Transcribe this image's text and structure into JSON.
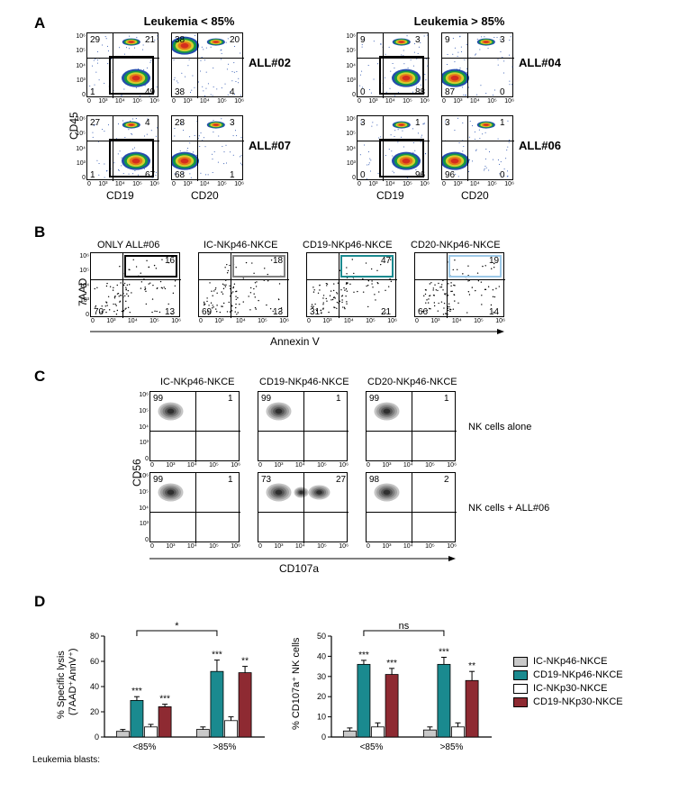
{
  "labels": {
    "A": "A",
    "B": "B",
    "C": "C",
    "D": "D",
    "leuk_lt": "Leukemia < 85%",
    "leuk_gt": "Leukemia > 85%",
    "ALL02": "ALL#02",
    "ALL07": "ALL#07",
    "ALL04": "ALL#04",
    "ALL06": "ALL#06",
    "CD45": "CD45",
    "CD19": "CD19",
    "CD20": "CD20",
    "CD56": "CD56",
    "CD107a": "CD107a",
    "7AAD": "7AAD",
    "AnnV": "Annexin V",
    "only06": "ONLY ALL#06",
    "IC46": "IC-NKp46-NKCE",
    "CD19_46": "CD19-NKp46-NKCE",
    "CD20_46": "CD20-NKp46-NKCE",
    "IC30": "IC-NKp30-NKCE",
    "CD19_30": "CD19-NKp30-NKCE",
    "nk_alone": "NK cells alone",
    "nk_all06": "NK cells + ALL#06",
    "lysis_y": "% Specific lysis\n(7AAD⁺AnnV⁺)",
    "lysis_y1": "% Specific lysis",
    "lysis_y2": "(7AAD⁺AnnV⁺)",
    "cd107_y": "% CD107a⁺ NK cells",
    "blasts": "Leukemia blasts:",
    "lt85": "<85%",
    "gt85": ">85%",
    "star1": "*",
    "star2": "**",
    "star3": "***",
    "ns": "ns"
  },
  "colors": {
    "bg": "#ffffff",
    "text": "#000000",
    "ic46": "#c9c9c9",
    "cd19_46": "#1a8a8f",
    "ic30": "#ffffff",
    "cd19_30": "#8e2a32",
    "cd20_gate": "#9dc9e8",
    "density1": "#0b3aa3",
    "density2": "#14a03a",
    "density3": "#e8d52a",
    "density4": "#e86c1a",
    "density5": "#d1261f",
    "gray_dots": "#7a7a7a"
  },
  "panelA": {
    "plots": [
      {
        "id": "A1",
        "sample": "ALL#02",
        "x": "CD19",
        "y": "CD45",
        "q": [
          29,
          21,
          1,
          49
        ],
        "gate": true,
        "gateColor": "#000",
        "gatePos": "right",
        "colored": true
      },
      {
        "id": "A2",
        "sample": "ALL#02",
        "x": "CD20",
        "y": "CD45",
        "q": [
          38,
          20,
          38,
          4
        ],
        "gate": false,
        "colored": true
      },
      {
        "id": "A3",
        "sample": "ALL#04",
        "x": "CD19",
        "y": "CD45",
        "q": [
          9,
          3,
          0,
          88
        ],
        "gate": true,
        "gateColor": "#000",
        "gatePos": "right",
        "colored": true
      },
      {
        "id": "A4",
        "sample": "ALL#04",
        "x": "CD20",
        "y": "CD45",
        "q": [
          9,
          3,
          87,
          0
        ],
        "gate": false,
        "colored": true
      },
      {
        "id": "A5",
        "sample": "ALL#07",
        "x": "CD19",
        "y": "CD45",
        "q": [
          27,
          4,
          1,
          67
        ],
        "gate": true,
        "gateColor": "#000",
        "gatePos": "right",
        "colored": true
      },
      {
        "id": "A6",
        "sample": "ALL#07",
        "x": "CD20",
        "y": "CD45",
        "q": [
          28,
          3,
          68,
          1
        ],
        "gate": false,
        "colored": true
      },
      {
        "id": "A7",
        "sample": "ALL#06",
        "x": "CD19",
        "y": "CD45",
        "q": [
          3,
          1,
          0,
          96
        ],
        "gate": true,
        "gateColor": "#000",
        "gatePos": "right",
        "colored": true
      },
      {
        "id": "A8",
        "sample": "ALL#06",
        "x": "CD20",
        "y": "CD45",
        "q": [
          3,
          1,
          96,
          0
        ],
        "gate": false,
        "colored": true
      }
    ]
  },
  "panelB": {
    "plots": [
      {
        "title": "ONLY ALL#06",
        "q": [
          null,
          16,
          70,
          13
        ],
        "gateColor": "#000000"
      },
      {
        "title": "IC-NKp46-NKCE",
        "q": [
          null,
          18,
          69,
          13
        ],
        "gateColor": "#808080"
      },
      {
        "title": "CD19-NKp46-NKCE",
        "q": [
          null,
          47,
          31,
          21
        ],
        "gateColor": "#1a8a8f"
      },
      {
        "title": "CD20-NKp46-NKCE",
        "q": [
          null,
          19,
          66,
          14
        ],
        "gateColor": "#9dc9e8"
      }
    ]
  },
  "panelC": {
    "plots_top": [
      {
        "title": "IC-NKp46-NKCE",
        "q": [
          99,
          1,
          0,
          0
        ]
      },
      {
        "title": "CD19-NKp46-NKCE",
        "q": [
          99,
          1,
          0,
          0
        ]
      },
      {
        "title": "CD20-NKp46-NKCE",
        "q": [
          99,
          1,
          0,
          0
        ]
      }
    ],
    "plots_bottom": [
      {
        "q": [
          99,
          1,
          0,
          0
        ]
      },
      {
        "q": [
          73,
          27,
          0,
          0
        ]
      },
      {
        "q": [
          98,
          2,
          0,
          0
        ]
      }
    ]
  },
  "panelD": {
    "lysis": {
      "ymax": 80,
      "ytick": 20,
      "groups": [
        "<85%",
        ">85%"
      ],
      "bars": [
        {
          "group": 0,
          "cond": "IC46",
          "val": 4.5,
          "err": 1.5,
          "color": "#c9c9c9",
          "sig": null
        },
        {
          "group": 0,
          "cond": "CD19_46",
          "val": 29,
          "err": 3,
          "color": "#1a8a8f",
          "sig": "***"
        },
        {
          "group": 0,
          "cond": "IC30",
          "val": 8,
          "err": 2,
          "color": "#ffffff",
          "sig": null
        },
        {
          "group": 0,
          "cond": "CD19_30",
          "val": 24,
          "err": 2,
          "color": "#8e2a32",
          "sig": "***"
        },
        {
          "group": 1,
          "cond": "IC46",
          "val": 6,
          "err": 2,
          "color": "#c9c9c9",
          "sig": null
        },
        {
          "group": 1,
          "cond": "CD19_46",
          "val": 52,
          "err": 9,
          "color": "#1a8a8f",
          "sig": "***"
        },
        {
          "group": 1,
          "cond": "IC30",
          "val": 13,
          "err": 3,
          "color": "#ffffff",
          "sig": null
        },
        {
          "group": 1,
          "cond": "CD19_30",
          "val": 51,
          "err": 5,
          "color": "#8e2a32",
          "sig": "**"
        }
      ],
      "bracket": {
        "from": 0,
        "to": 1,
        "label": "*"
      }
    },
    "cd107": {
      "ymax": 50,
      "ytick": 10,
      "groups": [
        "<85%",
        ">85%"
      ],
      "bars": [
        {
          "group": 0,
          "cond": "IC46",
          "val": 3,
          "err": 1.5,
          "color": "#c9c9c9",
          "sig": null
        },
        {
          "group": 0,
          "cond": "CD19_46",
          "val": 36,
          "err": 2,
          "color": "#1a8a8f",
          "sig": "***"
        },
        {
          "group": 0,
          "cond": "IC30",
          "val": 5,
          "err": 2,
          "color": "#ffffff",
          "sig": null
        },
        {
          "group": 0,
          "cond": "CD19_30",
          "val": 31,
          "err": 3,
          "color": "#8e2a32",
          "sig": "***"
        },
        {
          "group": 1,
          "cond": "IC46",
          "val": 3.5,
          "err": 1.5,
          "color": "#c9c9c9",
          "sig": null
        },
        {
          "group": 1,
          "cond": "CD19_46",
          "val": 36,
          "err": 3.5,
          "color": "#1a8a8f",
          "sig": "***"
        },
        {
          "group": 1,
          "cond": "IC30",
          "val": 5,
          "err": 2,
          "color": "#ffffff",
          "sig": null
        },
        {
          "group": 1,
          "cond": "CD19_30",
          "val": 28,
          "err": 4.5,
          "color": "#8e2a32",
          "sig": "**"
        }
      ],
      "bracket": {
        "from": 0,
        "to": 1,
        "label": "ns"
      }
    }
  },
  "layout": {
    "plotA_w": 80,
    "plotA_h": 72,
    "plotB_w": 100,
    "plotB_h": 72,
    "plotC_w": 100,
    "plotC_h": 78,
    "barChart_w": 210,
    "barChart_h": 150
  }
}
